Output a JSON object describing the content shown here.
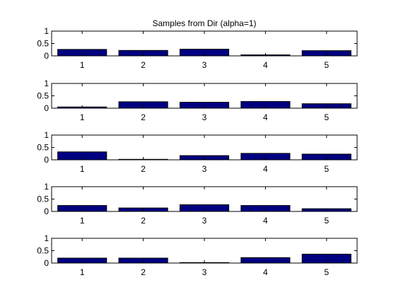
{
  "chart_data": {
    "type": "bar",
    "title": "Samples from Dir (alpha=1)",
    "bar_color": "#000080",
    "edge_color": "#000000",
    "grid": false,
    "legend": "none",
    "panels": [
      {
        "categories": [
          "1",
          "2",
          "3",
          "4",
          "5"
        ],
        "values": [
          0.26,
          0.22,
          0.27,
          0.04,
          0.21
        ],
        "ylim": [
          0,
          1
        ],
        "yticks": [
          "0",
          "0.5",
          "1"
        ]
      },
      {
        "categories": [
          "1",
          "2",
          "3",
          "4",
          "5"
        ],
        "values": [
          0.05,
          0.26,
          0.24,
          0.27,
          0.18
        ],
        "ylim": [
          0,
          1
        ],
        "yticks": [
          "0",
          "0.5",
          "1"
        ]
      },
      {
        "categories": [
          "1",
          "2",
          "3",
          "4",
          "5"
        ],
        "values": [
          0.32,
          0.02,
          0.17,
          0.26,
          0.23
        ],
        "ylim": [
          0,
          1
        ],
        "yticks": [
          "0",
          "0.5",
          "1"
        ]
      },
      {
        "categories": [
          "1",
          "2",
          "3",
          "4",
          "5"
        ],
        "values": [
          0.24,
          0.14,
          0.27,
          0.24,
          0.11
        ],
        "ylim": [
          0,
          1
        ],
        "yticks": [
          "0",
          "0.5",
          "1"
        ]
      },
      {
        "categories": [
          "1",
          "2",
          "3",
          "4",
          "5"
        ],
        "values": [
          0.2,
          0.2,
          0.02,
          0.22,
          0.36
        ],
        "ylim": [
          0,
          1
        ],
        "yticks": [
          "0",
          "0.5",
          "1"
        ]
      }
    ]
  }
}
